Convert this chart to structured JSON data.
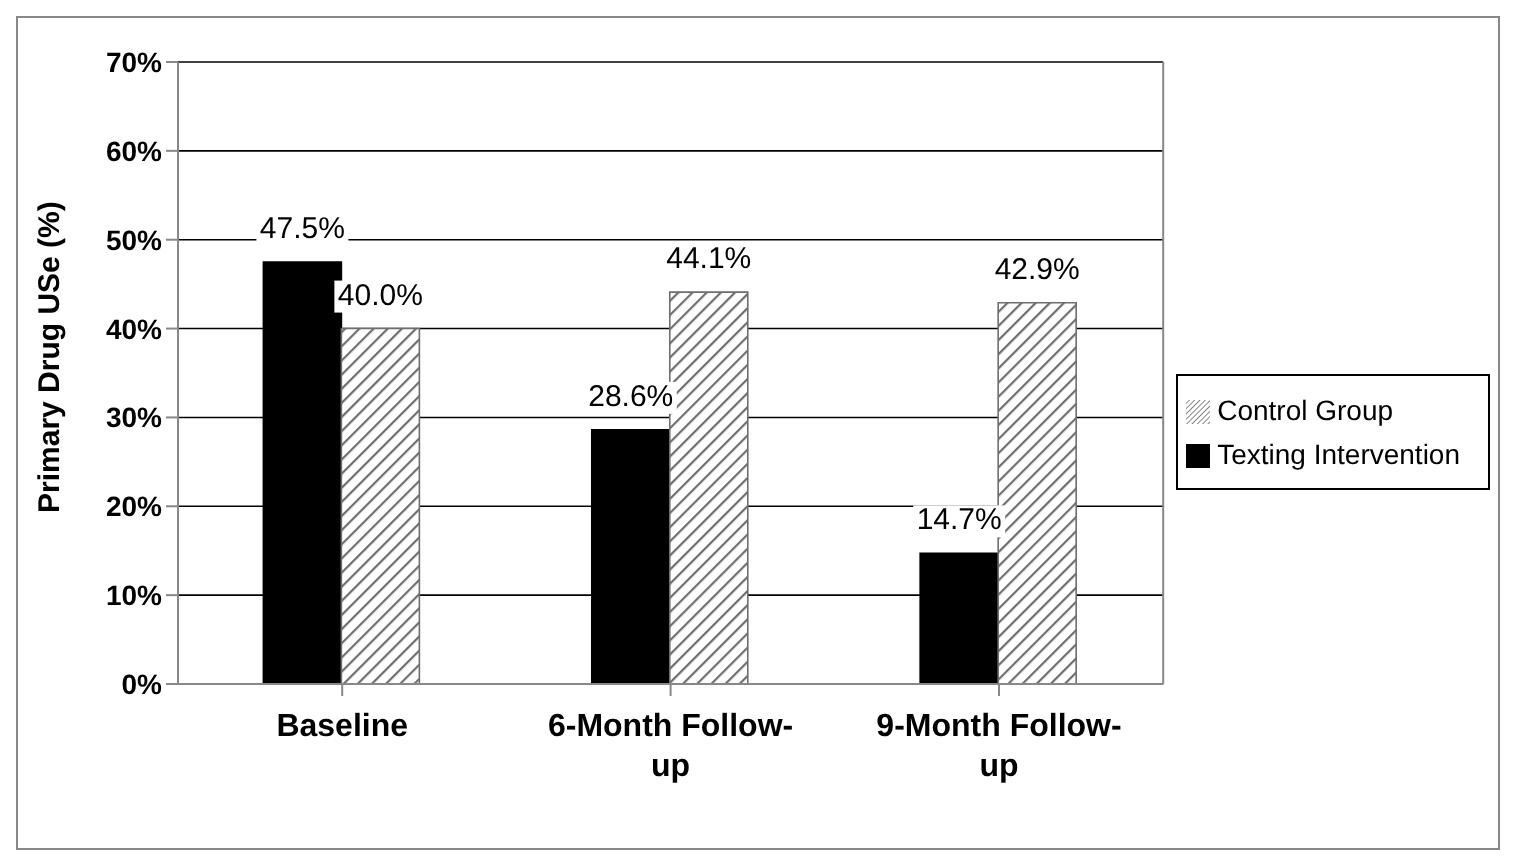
{
  "chart_data": {
    "type": "bar",
    "ylabel": "Primary Drug USe (%)",
    "categories": [
      "Baseline",
      "6-Month Follow-up",
      "9-Month Follow-up"
    ],
    "series": [
      {
        "name": "Texting Intervention",
        "color": "#000000",
        "values": [
          47.5,
          28.6,
          14.7
        ],
        "value_labels": [
          "47.5%",
          "28.6%",
          "14.7%"
        ]
      },
      {
        "name": "Control Group",
        "color": "#6e6e6e",
        "values": [
          40.0,
          44.1,
          42.9
        ],
        "value_labels": [
          "40.0%",
          "44.1%",
          "42.9%"
        ]
      }
    ],
    "ylim": [
      0,
      70
    ],
    "yticks": [
      {
        "value": 0,
        "label": "0%"
      },
      {
        "value": 10,
        "label": "10%"
      },
      {
        "value": 20,
        "label": "20%"
      },
      {
        "value": 30,
        "label": "30%"
      },
      {
        "value": 40,
        "label": "40%"
      },
      {
        "value": 50,
        "label": "50%"
      },
      {
        "value": 60,
        "label": "60%"
      },
      {
        "value": 70,
        "label": "70%"
      }
    ],
    "grid": "y",
    "legend": "right"
  }
}
